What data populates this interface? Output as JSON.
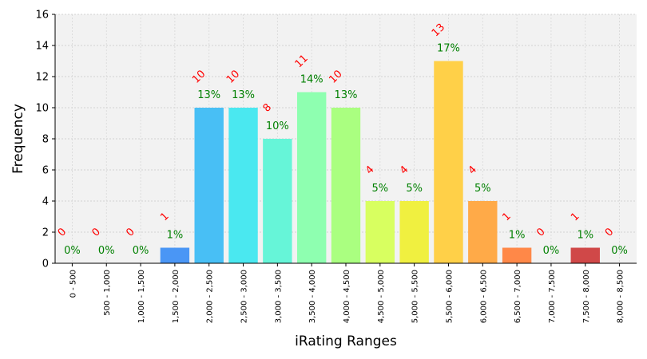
{
  "chart_data": {
    "type": "bar",
    "title": "",
    "xlabel": "iRating Ranges",
    "ylabel": "Frequency",
    "ylim": [
      0,
      16
    ],
    "yticks": [
      0,
      2,
      4,
      6,
      8,
      10,
      12,
      14,
      16
    ],
    "grid": true,
    "categories": [
      "0 - 500",
      "500 - 1,000",
      "1,000 - 1,500",
      "1,500 - 2,000",
      "2,000 - 2,500",
      "2,500 - 3,000",
      "3,000 - 3,500",
      "3,500 - 4,000",
      "4,000 - 4,500",
      "4,500 - 5,000",
      "5,000 - 5,500",
      "5,500 - 6,000",
      "6,000 - 6,500",
      "6,500 - 7,000",
      "7,000 - 7,500",
      "7,500 - 8,000",
      "8,000 - 8,500"
    ],
    "values": [
      0,
      0,
      0,
      1,
      10,
      10,
      8,
      11,
      10,
      4,
      4,
      13,
      4,
      1,
      0,
      1,
      0
    ],
    "percent_labels": [
      "0%",
      "0%",
      "0%",
      "1%",
      "13%",
      "13%",
      "10%",
      "14%",
      "13%",
      "5%",
      "5%",
      "17%",
      "5%",
      "1%",
      "0%",
      "1%",
      "0%"
    ],
    "colors": [
      "#1f4fd0",
      "#2a66e8",
      "#3a80f5",
      "#4a96f5",
      "#48bff5",
      "#4ae8f0",
      "#66f5d8",
      "#8effb0",
      "#aaff80",
      "#d8ff60",
      "#f0f040",
      "#ffd048",
      "#ffaa48",
      "#ff8848",
      "#e85040",
      "#d04848",
      "#b83030"
    ],
    "count_label_color": "#ff0000",
    "percent_label_color": "#008000",
    "plot_background": "#f2f2f2"
  }
}
